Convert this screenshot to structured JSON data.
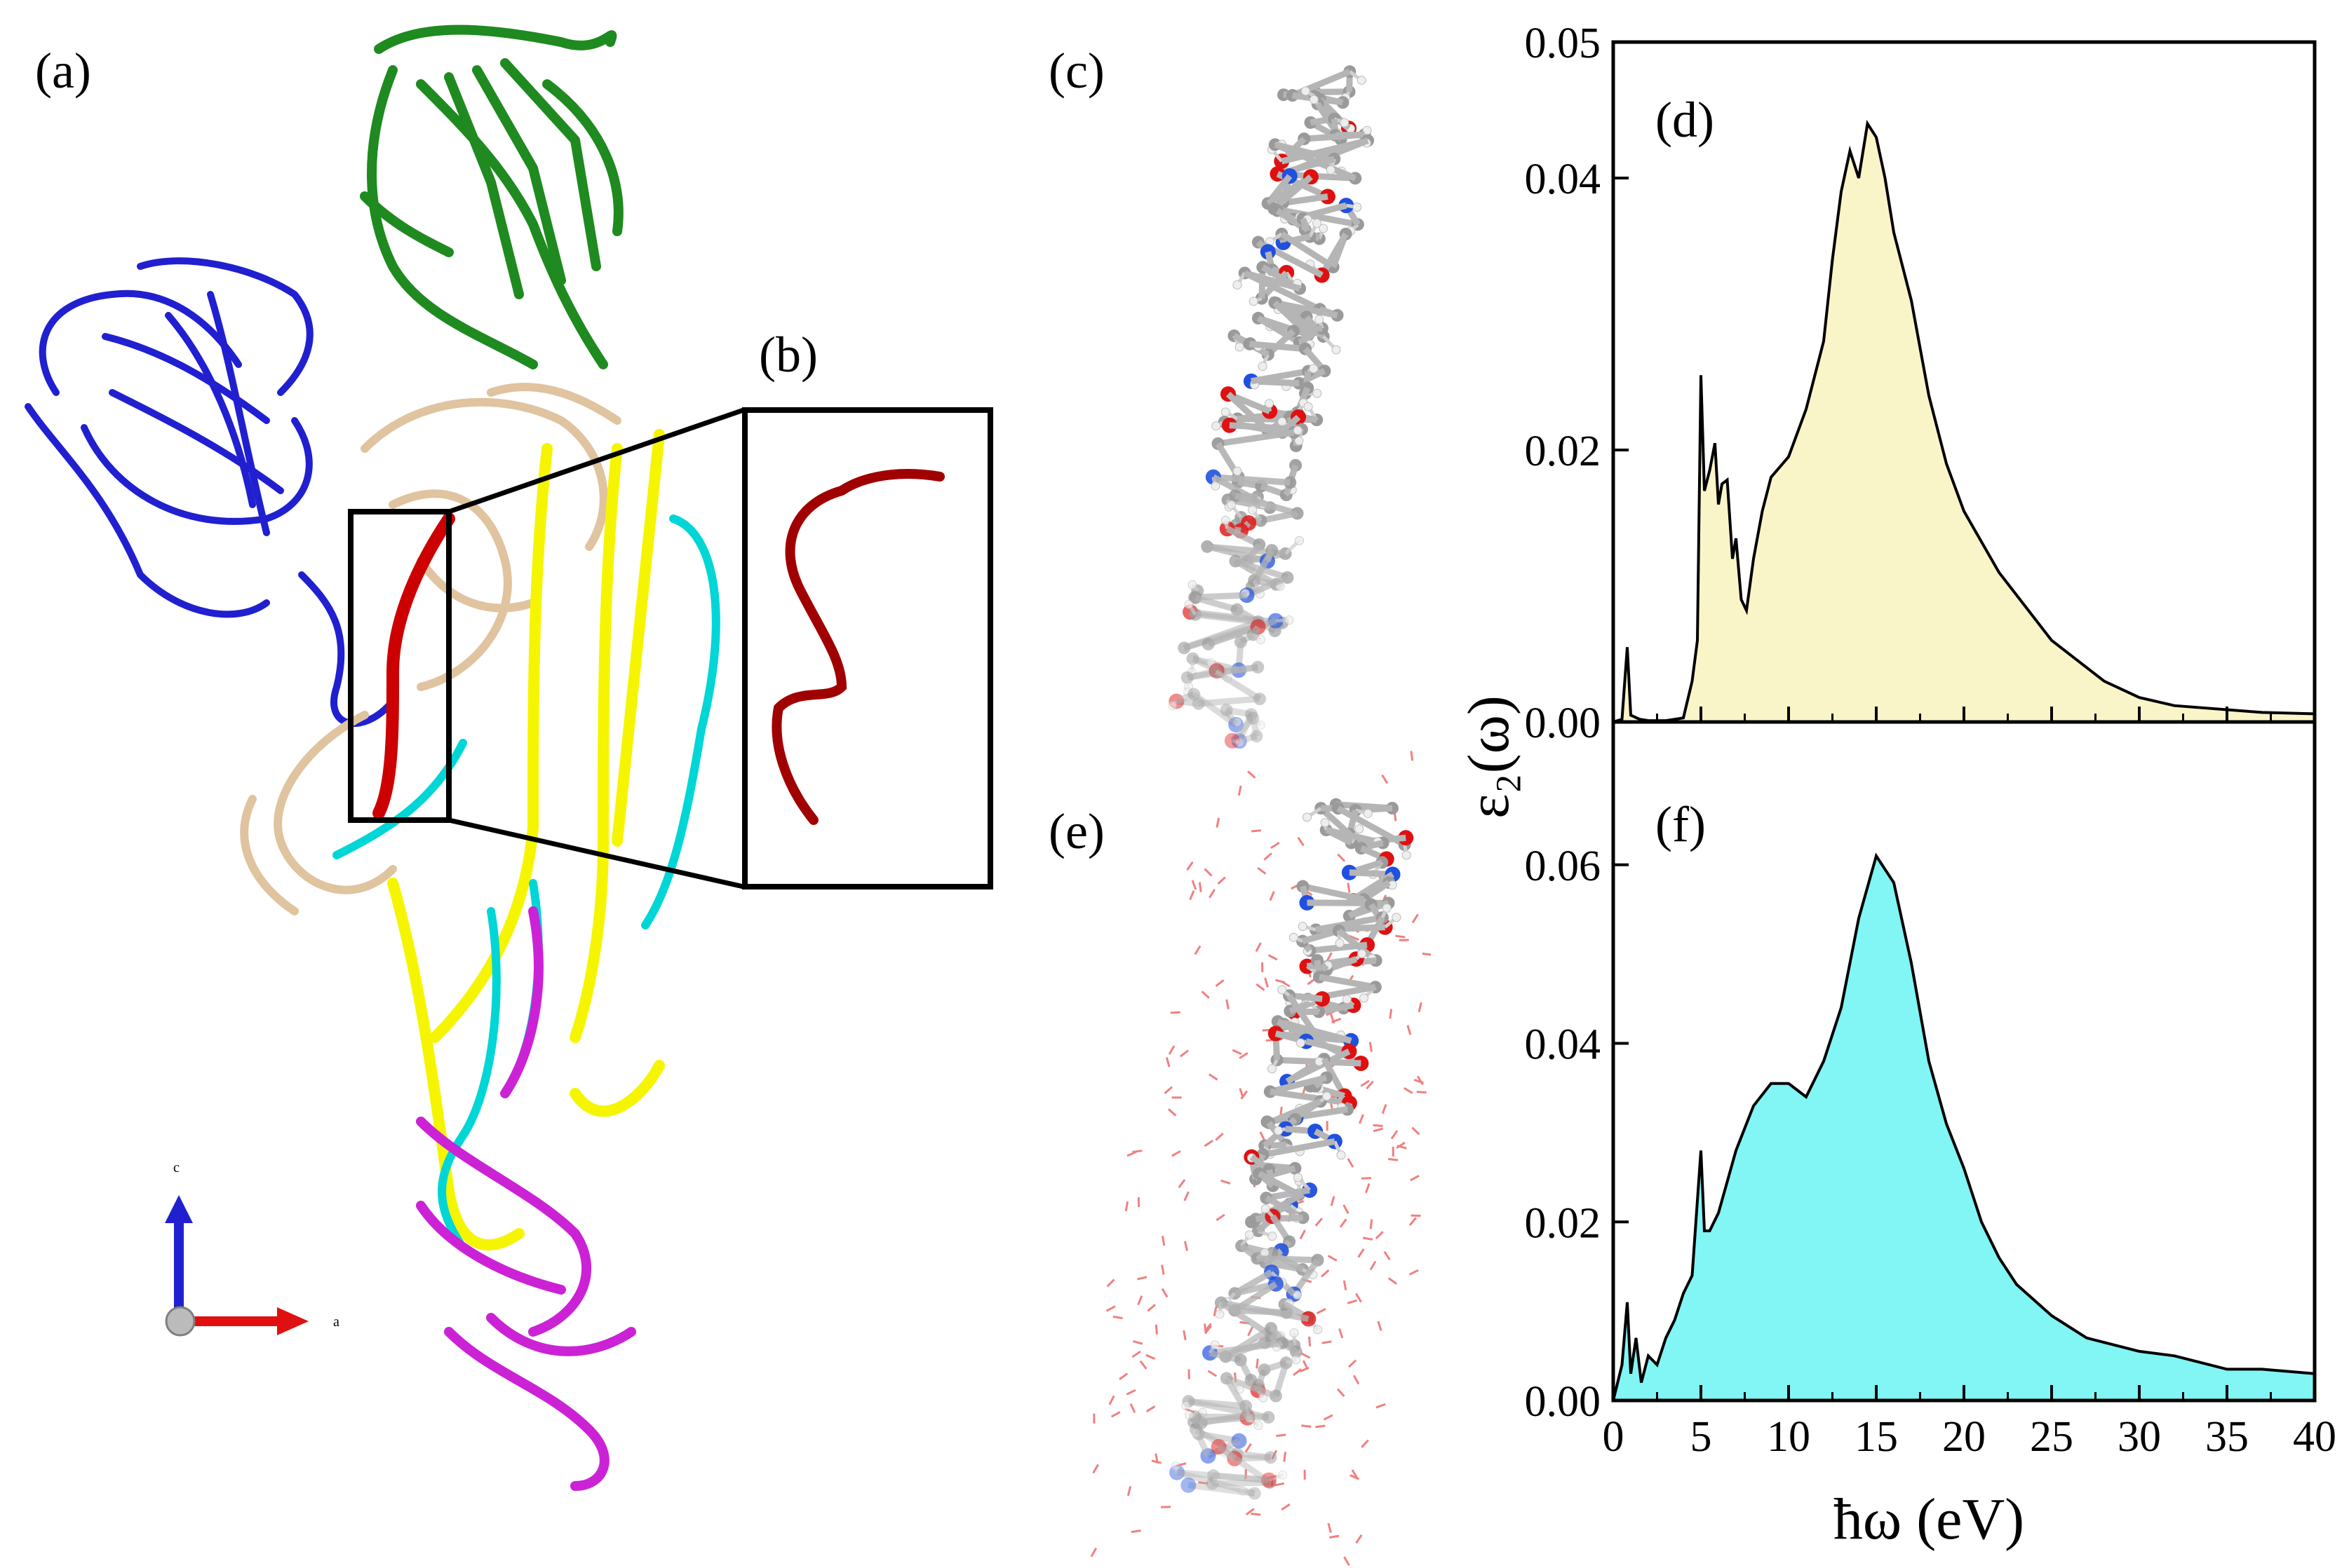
{
  "panel_labels": {
    "a": "(a)",
    "b": "(b)",
    "c": "(c)",
    "d": "(d)",
    "e": "(e)",
    "f": "(f)"
  },
  "axes_triad": {
    "c": "c",
    "a": "a"
  },
  "colors": {
    "green": "#1f8a1f",
    "blue": "#2020d0",
    "tan": "#e0c39f",
    "yellow": "#f5f500",
    "cyan": "#00d6d6",
    "magenta": "#cc22d6",
    "red": "#cc0000",
    "fill_d": "#faf5c8",
    "fill_f": "#82f5f5",
    "atom_carbon": "#9a9a9a",
    "atom_oxygen": "#e01010",
    "atom_nitrogen": "#2050e0"
  },
  "chart_data": [
    {
      "type": "area",
      "panel": "(d)",
      "ylabel": "ε₂(ω)",
      "ylim": [
        0,
        0.05
      ],
      "xlim": [
        0,
        40
      ],
      "yticks": [
        "0.00",
        "0.02",
        "0.04",
        "0.05"
      ],
      "x": [
        0,
        0.5,
        0.8,
        1.0,
        1.5,
        2,
        3,
        4,
        4.5,
        4.8,
        5.0,
        5.2,
        5.5,
        5.8,
        6.0,
        6.2,
        6.5,
        6.8,
        7.0,
        7.3,
        7.6,
        8.0,
        8.5,
        9,
        10,
        11,
        12,
        12.5,
        13,
        13.5,
        14,
        14.5,
        15,
        15.5,
        16,
        17,
        18,
        19,
        20,
        22,
        25,
        28,
        30,
        32,
        35,
        37,
        40
      ],
      "y": [
        0.0,
        0.0002,
        0.0055,
        0.0005,
        0.0002,
        0.0001,
        0.0001,
        0.0003,
        0.003,
        0.006,
        0.0255,
        0.017,
        0.0185,
        0.0205,
        0.016,
        0.0175,
        0.0178,
        0.012,
        0.0135,
        0.009,
        0.0082,
        0.012,
        0.0155,
        0.018,
        0.0195,
        0.023,
        0.028,
        0.034,
        0.039,
        0.042,
        0.04,
        0.044,
        0.043,
        0.04,
        0.036,
        0.031,
        0.024,
        0.019,
        0.0155,
        0.011,
        0.006,
        0.003,
        0.0018,
        0.0012,
        0.0009,
        0.0007,
        0.0006
      ]
    },
    {
      "type": "area",
      "panel": "(f)",
      "xlabel": "ħω (eV)",
      "ylim": [
        0,
        0.076
      ],
      "xlim": [
        0,
        40
      ],
      "xticks": [
        "0",
        "5",
        "10",
        "15",
        "20",
        "25",
        "30",
        "35",
        "40"
      ],
      "yticks": [
        "0.00",
        "0.02",
        "0.04",
        "0.06"
      ],
      "x": [
        0,
        0.5,
        0.8,
        1.0,
        1.3,
        1.6,
        2,
        2.5,
        3,
        3.5,
        4,
        4.5,
        5.0,
        5.2,
        5.5,
        6,
        7,
        8,
        9,
        10,
        11,
        12,
        13,
        14,
        15,
        16,
        17,
        18,
        19,
        20,
        21,
        22,
        23,
        25,
        27,
        30,
        32,
        35,
        37,
        40
      ],
      "y": [
        0.0,
        0.004,
        0.011,
        0.003,
        0.007,
        0.002,
        0.005,
        0.004,
        0.007,
        0.009,
        0.012,
        0.014,
        0.028,
        0.019,
        0.019,
        0.021,
        0.028,
        0.033,
        0.0355,
        0.0355,
        0.034,
        0.038,
        0.044,
        0.054,
        0.061,
        0.058,
        0.049,
        0.038,
        0.031,
        0.026,
        0.02,
        0.016,
        0.013,
        0.0095,
        0.007,
        0.0055,
        0.005,
        0.0035,
        0.0035,
        0.003
      ]
    }
  ]
}
